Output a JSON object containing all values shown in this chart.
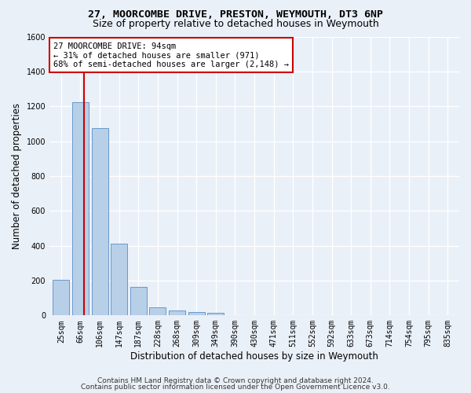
{
  "title1": "27, MOORCOMBE DRIVE, PRESTON, WEYMOUTH, DT3 6NP",
  "title2": "Size of property relative to detached houses in Weymouth",
  "xlabel": "Distribution of detached houses by size in Weymouth",
  "ylabel": "Number of detached properties",
  "categories": [
    "25sqm",
    "66sqm",
    "106sqm",
    "147sqm",
    "187sqm",
    "228sqm",
    "268sqm",
    "309sqm",
    "349sqm",
    "390sqm",
    "430sqm",
    "471sqm",
    "511sqm",
    "552sqm",
    "592sqm",
    "633sqm",
    "673sqm",
    "714sqm",
    "754sqm",
    "795sqm",
    "835sqm"
  ],
  "values": [
    205,
    1225,
    1075,
    410,
    165,
    45,
    28,
    18,
    14,
    0,
    0,
    0,
    0,
    0,
    0,
    0,
    0,
    0,
    0,
    0,
    0
  ],
  "bar_color": "#b8cfe8",
  "bar_edge_color": "#6699cc",
  "annotation_line1": "27 MOORCOMBE DRIVE: 94sqm",
  "annotation_line2": "← 31% of detached houses are smaller (971)",
  "annotation_line3": "68% of semi-detached houses are larger (2,148) →",
  "annotation_box_color": "#ffffff",
  "annotation_box_edge_color": "#cc0000",
  "red_line_x": 1.18,
  "ylim": [
    0,
    1600
  ],
  "yticks": [
    0,
    200,
    400,
    600,
    800,
    1000,
    1200,
    1400,
    1600
  ],
  "footer1": "Contains HM Land Registry data © Crown copyright and database right 2024.",
  "footer2": "Contains public sector information licensed under the Open Government Licence v3.0.",
  "background_color": "#eaf0f8",
  "plot_background_color": "#eaf0f8",
  "grid_color": "#ffffff",
  "title1_fontsize": 9.5,
  "title2_fontsize": 9,
  "axis_label_fontsize": 8.5,
  "tick_fontsize": 7,
  "footer_fontsize": 6.5,
  "annot_fontsize": 7.5
}
